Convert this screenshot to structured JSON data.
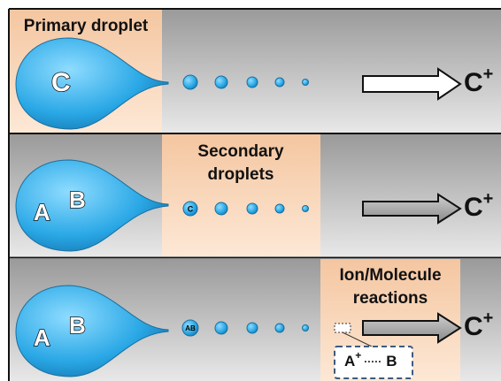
{
  "rows": [
    {
      "label": [
        "Primary droplet"
      ],
      "droplet": [
        "C"
      ],
      "first_small": "",
      "ion": {
        "text": "C",
        "charge": "+"
      }
    },
    {
      "label": [
        "Secondary",
        "droplets"
      ],
      "droplet": [
        "A",
        "B"
      ],
      "first_small": "C",
      "ion": {
        "text": "C",
        "charge": "+"
      }
    },
    {
      "label": [
        "Ion/Molecule",
        "reactions"
      ],
      "droplet": [
        "A",
        "B"
      ],
      "first_small": "AB",
      "ion": {
        "text": "C",
        "charge": "+"
      },
      "complex": {
        "left": "A",
        "charge": "+",
        "link": "·····",
        "right": "B"
      }
    }
  ]
}
